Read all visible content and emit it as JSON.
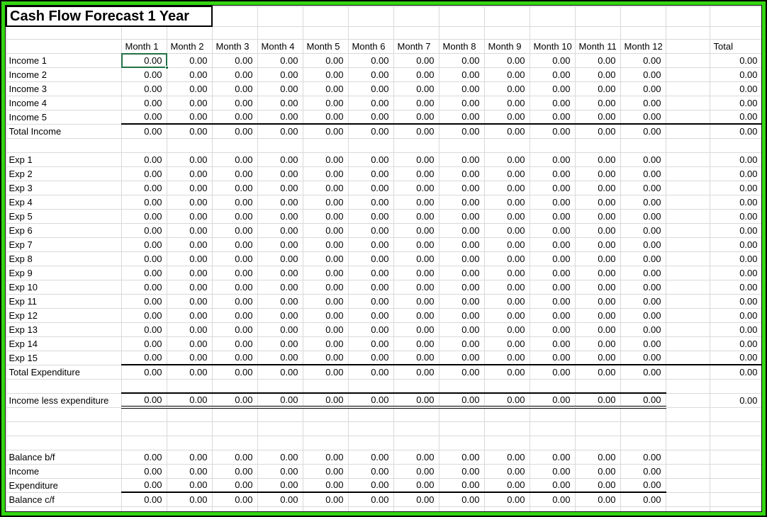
{
  "title": "Cash Flow Forecast 1 Year",
  "colors": {
    "frame_green": "#33d611",
    "frame_edge": "#000000",
    "gridline": "#d9d9d9",
    "rule_black": "#000000",
    "selection_green": "#217346",
    "background": "#ffffff",
    "text": "#000000"
  },
  "columns": {
    "months": [
      "Month 1",
      "Month 2",
      "Month 3",
      "Month 4",
      "Month 5",
      "Month 6",
      "Month 7",
      "Month 8",
      "Month 9",
      "Month 10",
      "Month 11",
      "Month 12"
    ],
    "total_label": "Total"
  },
  "selection": {
    "row_label": "Income 1",
    "column_label": "Month 1"
  },
  "rows": [
    {
      "label": "Income 1",
      "type": "data",
      "values": [
        "0.00",
        "0.00",
        "0.00",
        "0.00",
        "0.00",
        "0.00",
        "0.00",
        "0.00",
        "0.00",
        "0.00",
        "0.00",
        "0.00"
      ],
      "total": "0.00",
      "underline": "none",
      "topline": false
    },
    {
      "label": "Income 2",
      "type": "data",
      "values": [
        "0.00",
        "0.00",
        "0.00",
        "0.00",
        "0.00",
        "0.00",
        "0.00",
        "0.00",
        "0.00",
        "0.00",
        "0.00",
        "0.00"
      ],
      "total": "0.00",
      "underline": "none",
      "topline": false
    },
    {
      "label": "Income 3",
      "type": "data",
      "values": [
        "0.00",
        "0.00",
        "0.00",
        "0.00",
        "0.00",
        "0.00",
        "0.00",
        "0.00",
        "0.00",
        "0.00",
        "0.00",
        "0.00"
      ],
      "total": "0.00",
      "underline": "none",
      "topline": false
    },
    {
      "label": "Income 4",
      "type": "data",
      "values": [
        "0.00",
        "0.00",
        "0.00",
        "0.00",
        "0.00",
        "0.00",
        "0.00",
        "0.00",
        "0.00",
        "0.00",
        "0.00",
        "0.00"
      ],
      "total": "0.00",
      "underline": "none",
      "topline": false
    },
    {
      "label": "Income 5",
      "type": "data",
      "values": [
        "0.00",
        "0.00",
        "0.00",
        "0.00",
        "0.00",
        "0.00",
        "0.00",
        "0.00",
        "0.00",
        "0.00",
        "0.00",
        "0.00"
      ],
      "total": "0.00",
      "underline": "full",
      "topline": false
    },
    {
      "label": "Total Income",
      "type": "data",
      "values": [
        "0.00",
        "0.00",
        "0.00",
        "0.00",
        "0.00",
        "0.00",
        "0.00",
        "0.00",
        "0.00",
        "0.00",
        "0.00",
        "0.00"
      ],
      "total": "0.00",
      "underline": "none",
      "topline": false
    },
    {
      "type": "blank"
    },
    {
      "label": "Exp 1",
      "type": "data",
      "values": [
        "0.00",
        "0.00",
        "0.00",
        "0.00",
        "0.00",
        "0.00",
        "0.00",
        "0.00",
        "0.00",
        "0.00",
        "0.00",
        "0.00"
      ],
      "total": "0.00",
      "underline": "none",
      "topline": false
    },
    {
      "label": "Exp 2",
      "type": "data",
      "values": [
        "0.00",
        "0.00",
        "0.00",
        "0.00",
        "0.00",
        "0.00",
        "0.00",
        "0.00",
        "0.00",
        "0.00",
        "0.00",
        "0.00"
      ],
      "total": "0.00",
      "underline": "none",
      "topline": false
    },
    {
      "label": "Exp 3",
      "type": "data",
      "values": [
        "0.00",
        "0.00",
        "0.00",
        "0.00",
        "0.00",
        "0.00",
        "0.00",
        "0.00",
        "0.00",
        "0.00",
        "0.00",
        "0.00"
      ],
      "total": "0.00",
      "underline": "none",
      "topline": false
    },
    {
      "label": "Exp 4",
      "type": "data",
      "values": [
        "0.00",
        "0.00",
        "0.00",
        "0.00",
        "0.00",
        "0.00",
        "0.00",
        "0.00",
        "0.00",
        "0.00",
        "0.00",
        "0.00"
      ],
      "total": "0.00",
      "underline": "none",
      "topline": false
    },
    {
      "label": "Exp 5",
      "type": "data",
      "values": [
        "0.00",
        "0.00",
        "0.00",
        "0.00",
        "0.00",
        "0.00",
        "0.00",
        "0.00",
        "0.00",
        "0.00",
        "0.00",
        "0.00"
      ],
      "total": "0.00",
      "underline": "none",
      "topline": false
    },
    {
      "label": "Exp 6",
      "type": "data",
      "values": [
        "0.00",
        "0.00",
        "0.00",
        "0.00",
        "0.00",
        "0.00",
        "0.00",
        "0.00",
        "0.00",
        "0.00",
        "0.00",
        "0.00"
      ],
      "total": "0.00",
      "underline": "none",
      "topline": false
    },
    {
      "label": "Exp 7",
      "type": "data",
      "values": [
        "0.00",
        "0.00",
        "0.00",
        "0.00",
        "0.00",
        "0.00",
        "0.00",
        "0.00",
        "0.00",
        "0.00",
        "0.00",
        "0.00"
      ],
      "total": "0.00",
      "underline": "none",
      "topline": false
    },
    {
      "label": "Exp 8",
      "type": "data",
      "values": [
        "0.00",
        "0.00",
        "0.00",
        "0.00",
        "0.00",
        "0.00",
        "0.00",
        "0.00",
        "0.00",
        "0.00",
        "0.00",
        "0.00"
      ],
      "total": "0.00",
      "underline": "none",
      "topline": false
    },
    {
      "label": "Exp 9",
      "type": "data",
      "values": [
        "0.00",
        "0.00",
        "0.00",
        "0.00",
        "0.00",
        "0.00",
        "0.00",
        "0.00",
        "0.00",
        "0.00",
        "0.00",
        "0.00"
      ],
      "total": "0.00",
      "underline": "none",
      "topline": false
    },
    {
      "label": "Exp 10",
      "type": "data",
      "values": [
        "0.00",
        "0.00",
        "0.00",
        "0.00",
        "0.00",
        "0.00",
        "0.00",
        "0.00",
        "0.00",
        "0.00",
        "0.00",
        "0.00"
      ],
      "total": "0.00",
      "underline": "none",
      "topline": false
    },
    {
      "label": "Exp 11",
      "type": "data",
      "values": [
        "0.00",
        "0.00",
        "0.00",
        "0.00",
        "0.00",
        "0.00",
        "0.00",
        "0.00",
        "0.00",
        "0.00",
        "0.00",
        "0.00"
      ],
      "total": "0.00",
      "underline": "none",
      "topline": false
    },
    {
      "label": "Exp 12",
      "type": "data",
      "values": [
        "0.00",
        "0.00",
        "0.00",
        "0.00",
        "0.00",
        "0.00",
        "0.00",
        "0.00",
        "0.00",
        "0.00",
        "0.00",
        "0.00"
      ],
      "total": "0.00",
      "underline": "none",
      "topline": false
    },
    {
      "label": "Exp 13",
      "type": "data",
      "values": [
        "0.00",
        "0.00",
        "0.00",
        "0.00",
        "0.00",
        "0.00",
        "0.00",
        "0.00",
        "0.00",
        "0.00",
        "0.00",
        "0.00"
      ],
      "total": "0.00",
      "underline": "none",
      "topline": false
    },
    {
      "label": "Exp 14",
      "type": "data",
      "values": [
        "0.00",
        "0.00",
        "0.00",
        "0.00",
        "0.00",
        "0.00",
        "0.00",
        "0.00",
        "0.00",
        "0.00",
        "0.00",
        "0.00"
      ],
      "total": "0.00",
      "underline": "none",
      "topline": false
    },
    {
      "label": "Exp 15",
      "type": "data",
      "values": [
        "0.00",
        "0.00",
        "0.00",
        "0.00",
        "0.00",
        "0.00",
        "0.00",
        "0.00",
        "0.00",
        "0.00",
        "0.00",
        "0.00"
      ],
      "total": "0.00",
      "underline": "full",
      "topline": false
    },
    {
      "label": "Total Expenditure",
      "type": "data",
      "values": [
        "0.00",
        "0.00",
        "0.00",
        "0.00",
        "0.00",
        "0.00",
        "0.00",
        "0.00",
        "0.00",
        "0.00",
        "0.00",
        "0.00"
      ],
      "total": "0.00",
      "underline": "none",
      "topline": false
    },
    {
      "type": "blank"
    },
    {
      "label": "Income less expenditure",
      "type": "data",
      "values": [
        "0.00",
        "0.00",
        "0.00",
        "0.00",
        "0.00",
        "0.00",
        "0.00",
        "0.00",
        "0.00",
        "0.00",
        "0.00",
        "0.00"
      ],
      "total": "0.00",
      "underline": "double",
      "topline": true
    },
    {
      "type": "blank"
    },
    {
      "type": "blank"
    },
    {
      "type": "blank"
    },
    {
      "label": "Balance b/f",
      "type": "data",
      "values": [
        "0.00",
        "0.00",
        "0.00",
        "0.00",
        "0.00",
        "0.00",
        "0.00",
        "0.00",
        "0.00",
        "0.00",
        "0.00",
        "0.00"
      ],
      "total": null,
      "underline": "none",
      "topline": false
    },
    {
      "label": "Income",
      "type": "data",
      "values": [
        "0.00",
        "0.00",
        "0.00",
        "0.00",
        "0.00",
        "0.00",
        "0.00",
        "0.00",
        "0.00",
        "0.00",
        "0.00",
        "0.00"
      ],
      "total": null,
      "underline": "none",
      "topline": false
    },
    {
      "label": "Expenditure",
      "type": "data",
      "values": [
        "0.00",
        "0.00",
        "0.00",
        "0.00",
        "0.00",
        "0.00",
        "0.00",
        "0.00",
        "0.00",
        "0.00",
        "0.00",
        "0.00"
      ],
      "total": null,
      "underline": "months",
      "topline": false
    },
    {
      "label": "Balance c/f",
      "type": "data",
      "values": [
        "0.00",
        "0.00",
        "0.00",
        "0.00",
        "0.00",
        "0.00",
        "0.00",
        "0.00",
        "0.00",
        "0.00",
        "0.00",
        "0.00"
      ],
      "total": null,
      "underline": "none",
      "topline": false
    }
  ]
}
